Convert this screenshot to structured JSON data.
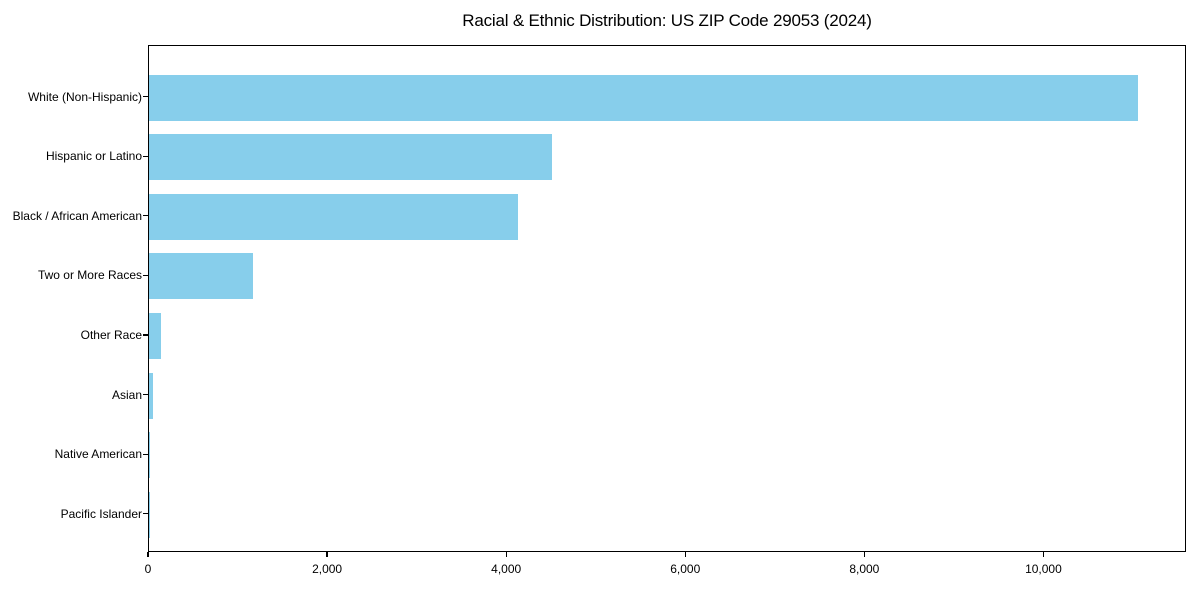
{
  "title": "Racial & Ethnic Distribution: US ZIP Code 29053 (2024)",
  "colors": {
    "bar_fill": "#87CEEB",
    "axis": "#000000",
    "background": "#ffffff",
    "text": "#000000"
  },
  "chart_data": {
    "type": "bar",
    "orientation": "horizontal",
    "title": "Racial & Ethnic Distribution: US ZIP Code 29053 (2024)",
    "categories": [
      "White (Non-Hispanic)",
      "Hispanic or Latino",
      "Black / African American",
      "Two or More Races",
      "Other Race",
      "Asian",
      "Native American",
      "Pacific Islander"
    ],
    "values": [
      11040,
      4505,
      4125,
      1165,
      135,
      40,
      10,
      2
    ],
    "bar_color": "#87CEEB",
    "xlabel": "",
    "ylabel": "",
    "xlim": [
      0,
      11592
    ],
    "x_ticks": [
      0,
      2000,
      4000,
      6000,
      8000,
      10000
    ],
    "x_tick_labels": [
      "0",
      "2,000",
      "4,000",
      "6,000",
      "8,000",
      "10,000"
    ],
    "grid": false,
    "legend": "none"
  }
}
